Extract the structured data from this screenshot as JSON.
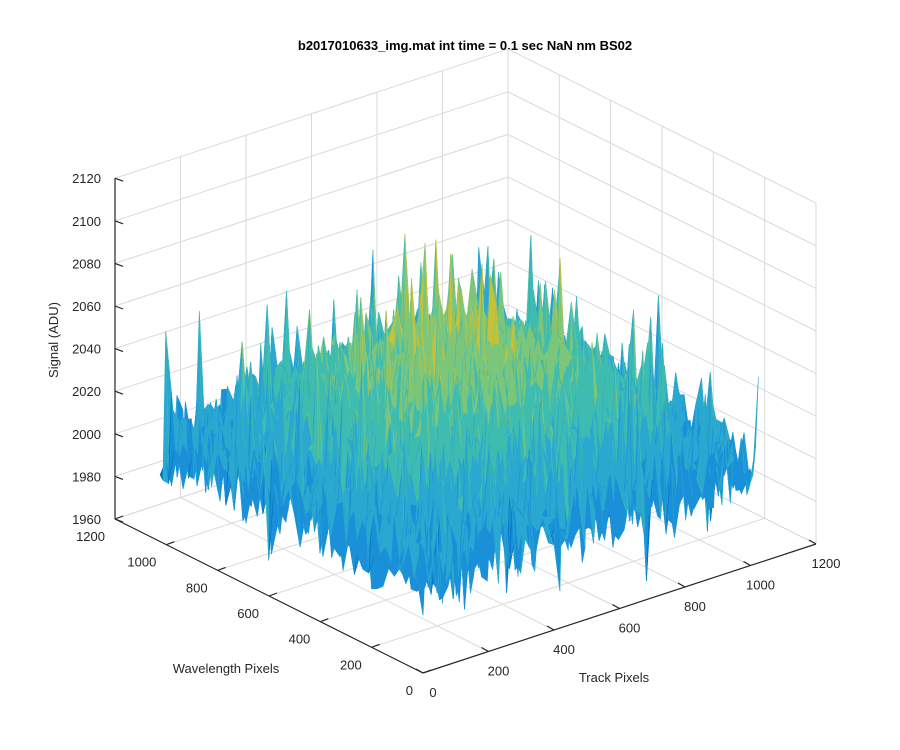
{
  "figure": {
    "background": "#ffffff",
    "colormap": "parula",
    "surface_colors": [
      "#0072bd",
      "#1a90d8",
      "#2aa8d0",
      "#3fbcb0",
      "#7cc67a",
      "#c5c23a",
      "#e8c02e"
    ]
  },
  "chart_data": {
    "type": "surface",
    "title": "b2017010633_img.mat int time = 0.1 sec  NaN nm BS02",
    "xlabel": "Track Pixels",
    "ylabel": "Wavelength Pixels",
    "zlabel": "Signal (ADU)",
    "xlim": [
      0,
      1200
    ],
    "ylim": [
      0,
      1200
    ],
    "zlim": [
      1960,
      2120
    ],
    "x_ticks": [
      "0",
      "200",
      "400",
      "600",
      "800",
      "1000",
      "1200"
    ],
    "y_ticks": [
      "0",
      "200",
      "400",
      "600",
      "800",
      "1000",
      "1200"
    ],
    "z_ticks": [
      "1960",
      "1980",
      "2000",
      "2020",
      "2040",
      "2060",
      "2080",
      "2100",
      "2120"
    ],
    "grid": true,
    "data_extent": {
      "x": [
        0,
        1024
      ],
      "y": [
        0,
        1024
      ]
    },
    "signal_summary": {
      "approx_mean": 2030,
      "approx_min": 1965,
      "approx_max": 2110,
      "center_level": 2050,
      "edge_level": 2005
    }
  }
}
